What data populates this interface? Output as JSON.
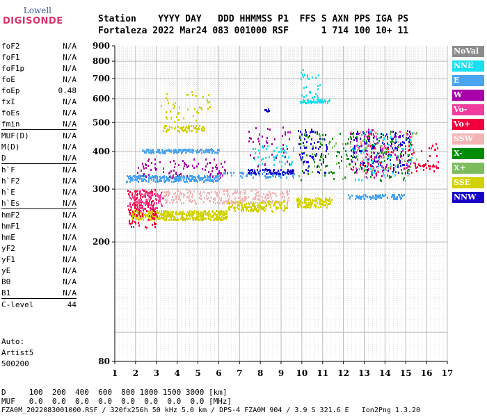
{
  "logo": {
    "brand": "Lowell",
    "name": "DIGISONDE"
  },
  "header": {
    "line1": "Station    YYYY DAY   DDD HHMMSS P1  FFS S AXN PPS IGA PS",
    "line2": "Fortaleza 2022 Mar24 083 001000 RSF      1 714 100 10+ 11"
  },
  "params": {
    "g1": [
      {
        "key": "foF2",
        "value": "N/A"
      },
      {
        "key": "foF1",
        "value": "N/A"
      },
      {
        "key": "foF1p",
        "value": "N/A"
      },
      {
        "key": "foE",
        "value": "N/A"
      },
      {
        "key": "foEp",
        "value": "0.48"
      },
      {
        "key": "fxI",
        "value": "N/A"
      },
      {
        "key": "foEs",
        "value": "N/A"
      },
      {
        "key": "fmin",
        "value": "N/A"
      }
    ],
    "g2": [
      {
        "key": "MUF(D)",
        "value": "N/A"
      },
      {
        "key": "M(D)",
        "value": "N/A"
      },
      {
        "key": "D",
        "value": "N/A"
      }
    ],
    "g3": [
      {
        "key": "h`F",
        "value": "N/A"
      },
      {
        "key": "h`F2",
        "value": "N/A"
      },
      {
        "key": "h`E",
        "value": "N/A"
      },
      {
        "key": "h`Es",
        "value": "N/A"
      }
    ],
    "g4": [
      {
        "key": "hmF2",
        "value": "N/A"
      },
      {
        "key": "hmF1",
        "value": "N/A"
      },
      {
        "key": "hmE",
        "value": "N/A"
      },
      {
        "key": "yF2",
        "value": "N/A"
      },
      {
        "key": "yF1",
        "value": "N/A"
      },
      {
        "key": "yE",
        "value": "N/A"
      },
      {
        "key": "B0",
        "value": "N/A"
      },
      {
        "key": "B1",
        "value": "N/A"
      }
    ],
    "clevel": {
      "key": "C-level",
      "value": "44"
    }
  },
  "auto": {
    "line1": "Auto:",
    "line2": "Artist5",
    "line3": "500200"
  },
  "legend": [
    {
      "label": "NoVal",
      "color": "#8c8c8c"
    },
    {
      "label": "NNE",
      "color": "#19e0f0"
    },
    {
      "label": "E",
      "color": "#4aa4f0"
    },
    {
      "label": "W",
      "color": "#a800a8"
    },
    {
      "label": "Vo-",
      "color": "#f03c9c"
    },
    {
      "label": "Vo+",
      "color": "#f0003c"
    },
    {
      "label": "SSW",
      "color": "#f4b4b4"
    },
    {
      "label": "X-",
      "color": "#008c00"
    },
    {
      "label": "X+",
      "color": "#7cbc5c"
    },
    {
      "label": "SSE",
      "color": "#d2d200"
    },
    {
      "label": "NNW",
      "color": "#1800c8"
    }
  ],
  "footer": {
    "line1": "D     100  200  400  600  800 1000 1500 3000 [km]",
    "line2": "MUF   0.0  0.0  0.0  0.0  0.0  0.0  0.0  0.0 [MHz]",
    "line3": "FZA0M_2022083001000.RSF / 320fx256h 50 kHz 5.0 km / DPS-4 FZA0M 904 / 3.9 S 321.6 E   Ion2Png 1.3.20"
  },
  "chart_data": {
    "type": "scatter",
    "xlim": [
      1,
      17
    ],
    "ylim": [
      80,
      900
    ],
    "y_scale": "log",
    "xticks": [
      1,
      2,
      3,
      4,
      5,
      6,
      7,
      8,
      9,
      10,
      11,
      12,
      13,
      14,
      15,
      16,
      17
    ],
    "yticks": [
      80,
      200,
      300,
      400,
      500,
      600,
      700,
      800,
      900
    ],
    "x_grid_step": 0.2,
    "y_grid_step": 10,
    "clusters": [
      {
        "series": "SSE",
        "x": [
          1.8,
          6.4
        ],
        "y": [
          238,
          256
        ],
        "n": 420
      },
      {
        "series": "SSE",
        "x": [
          6.4,
          9.3
        ],
        "y": [
          255,
          275
        ],
        "n": 160
      },
      {
        "series": "SSE",
        "x": [
          9.7,
          11.4
        ],
        "y": [
          262,
          282
        ],
        "n": 120
      },
      {
        "series": "SSE",
        "x": [
          3.3,
          5.3
        ],
        "y": [
          470,
          490
        ],
        "n": 70
      },
      {
        "series": "SSE",
        "x": [
          3.2,
          5.6
        ],
        "y": [
          500,
          640
        ],
        "n": 45
      },
      {
        "series": "SSW",
        "x": [
          1.8,
          9.5
        ],
        "y": [
          270,
          300
        ],
        "n": 260
      },
      {
        "series": "Vo+",
        "x": [
          1.6,
          3.0
        ],
        "y": [
          225,
          300
        ],
        "n": 140
      },
      {
        "series": "Vo-",
        "x": [
          1.6,
          3.3
        ],
        "y": [
          255,
          300
        ],
        "n": 80
      },
      {
        "series": "E",
        "x": [
          1.5,
          6.0
        ],
        "y": [
          320,
          335
        ],
        "n": 260
      },
      {
        "series": "E",
        "x": [
          2.3,
          6.0
        ],
        "y": [
          398,
          410
        ],
        "n": 140
      },
      {
        "series": "E",
        "x": [
          12.2,
          14.9
        ],
        "y": [
          280,
          290
        ],
        "n": 80
      },
      {
        "series": "E",
        "x": [
          6.0,
          9.6
        ],
        "y": [
          330,
          345
        ],
        "n": 70
      },
      {
        "series": "NNE",
        "x": [
          7.6,
          9.6
        ],
        "y": [
          360,
          420
        ],
        "n": 50
      },
      {
        "series": "NNE",
        "x": [
          9.9,
          11.3
        ],
        "y": [
          585,
          600
        ],
        "n": 60
      },
      {
        "series": "NNE",
        "x": [
          9.9,
          11.0
        ],
        "y": [
          600,
          760
        ],
        "n": 30
      },
      {
        "series": "W",
        "x": [
          2.0,
          6.4
        ],
        "y": [
          330,
          380
        ],
        "n": 90
      },
      {
        "series": "W",
        "x": [
          7.4,
          9.5
        ],
        "y": [
          360,
          490
        ],
        "n": 40
      },
      {
        "series": "NNW",
        "x": [
          7.4,
          9.6
        ],
        "y": [
          338,
          352
        ],
        "n": 70
      },
      {
        "series": "NNW",
        "x": [
          8.2,
          8.4
        ],
        "y": [
          548,
          556
        ],
        "n": 8
      },
      {
        "series": "NNW",
        "x": [
          12.3,
          15.2
        ],
        "y": [
          340,
          470
        ],
        "n": 160
      },
      {
        "series": "W",
        "x": [
          12.3,
          15.3
        ],
        "y": [
          330,
          480
        ],
        "n": 80
      },
      {
        "series": "NNE",
        "x": [
          12.3,
          15.3
        ],
        "y": [
          320,
          470
        ],
        "n": 80
      },
      {
        "series": "X-",
        "x": [
          9.8,
          15.4
        ],
        "y": [
          320,
          470
        ],
        "n": 120
      },
      {
        "series": "X+",
        "x": [
          9.8,
          15.6
        ],
        "y": [
          320,
          470
        ],
        "n": 70
      },
      {
        "series": "SSW",
        "x": [
          12.3,
          15.4
        ],
        "y": [
          330,
          470
        ],
        "n": 60
      },
      {
        "series": "Vo+",
        "x": [
          12.3,
          16.6
        ],
        "y": [
          340,
          430
        ],
        "n": 50
      },
      {
        "series": "Vo-",
        "x": [
          12.3,
          15.4
        ],
        "y": [
          340,
          470
        ],
        "n": 40
      },
      {
        "series": "NNW",
        "x": [
          9.8,
          11.2
        ],
        "y": [
          340,
          480
        ],
        "n": 70
      },
      {
        "series": "Vo+",
        "x": [
          15.4,
          16.6
        ],
        "y": [
          355,
          368
        ],
        "n": 25
      }
    ]
  }
}
